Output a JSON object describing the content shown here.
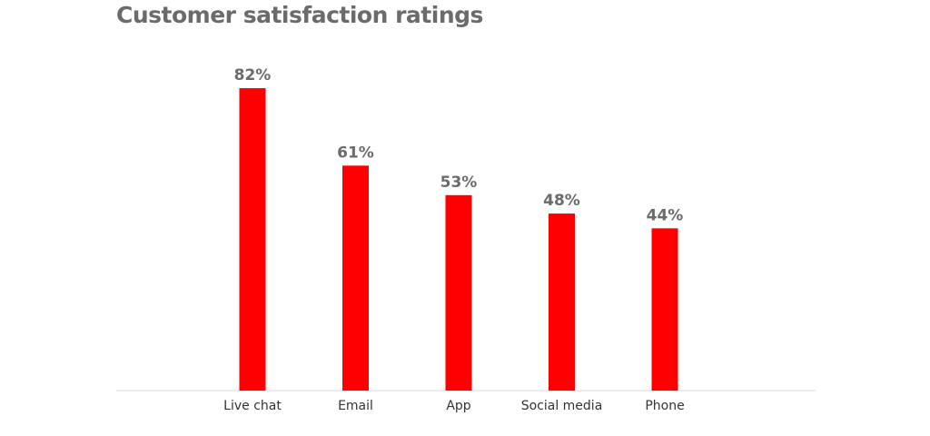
{
  "chart_data": {
    "type": "bar",
    "title": "Customer satisfaction ratings",
    "categories": [
      "Live chat",
      "Email",
      "App",
      "Social media",
      "Phone"
    ],
    "values": [
      82,
      61,
      53,
      48,
      44
    ],
    "value_labels": [
      "82%",
      "61%",
      "53%",
      "48%",
      "44%"
    ],
    "xlabel": "",
    "ylabel": "",
    "ylim": [
      0,
      100
    ],
    "grid": false,
    "legend": "none",
    "bar_color": "#ff0000",
    "baseline_color": "#d9d9d9",
    "text_color": "#6b6b6b"
  }
}
